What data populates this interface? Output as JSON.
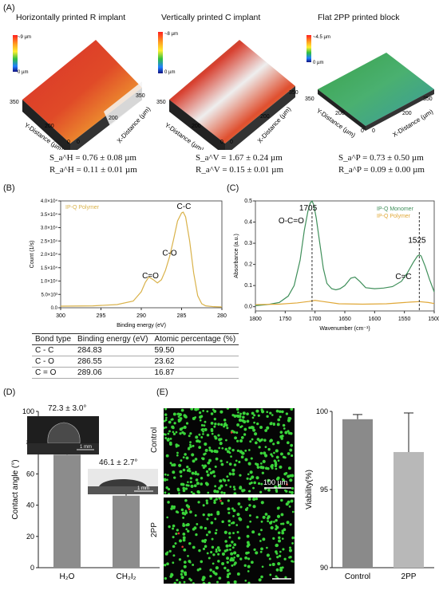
{
  "panel_labels": {
    "a": "(A)",
    "b": "(B)",
    "c": "(C)",
    "d": "(D)",
    "e": "(E)"
  },
  "panel_a": {
    "surfaces": [
      {
        "title": "Horizontally printed R implant",
        "scale_max": "~9 µm",
        "scale_min": "0 µm",
        "sa": "S_a^H = 0.76 ± 0.08 µm",
        "ra": "R_a^H = 0.11 ± 0.01 µm",
        "y_axis": "Y-Distance (µm)",
        "x_axis": "X-Distance (µm)",
        "y_ticks": [
          "350",
          "200",
          "0"
        ],
        "x_ticks": [
          "0",
          "200",
          "350"
        ]
      },
      {
        "title": "Vertically printed C implant",
        "scale_max": "~8 µm",
        "scale_min": "0 µm",
        "sa": "S_a^V = 1.67 ± 0.24 µm",
        "ra": "R_a^V = 0.15 ± 0.01 µm",
        "y_axis": "Y-Distance (µm)",
        "x_axis": "X-Distance (µm)",
        "y_ticks": [
          "350",
          "200",
          "0"
        ],
        "x_ticks": [
          "0",
          "200",
          "350"
        ]
      },
      {
        "title": "Flat 2PP printed block",
        "scale_max": "~4.5 µm",
        "scale_min": "0 µm",
        "sa": "S_a^P = 0.73 ± 0.50 µm",
        "ra": "R_a^P = 0.09 ± 0.00 µm",
        "y_axis": "Y-Distance (µm)",
        "x_axis": "X-Distance (µm)",
        "y_ticks": [
          "350",
          "200",
          "0"
        ],
        "x_ticks": [
          "0",
          "200",
          "350"
        ]
      }
    ]
  },
  "chart_data": [
    {
      "type": "line",
      "panel": "B",
      "legend": "IP-Q Polymer",
      "xlabel": "Binding energy (eV)",
      "ylabel": "Count (1/s)",
      "x_reversed": true,
      "xlim": [
        300,
        280
      ],
      "ylim": [
        0,
        40000
      ],
      "x_ticks": [
        "300",
        "295",
        "290",
        "285",
        "280"
      ],
      "y_ticks": [
        "0.0",
        "5.0×10³",
        "1.0×10⁴",
        "1.5×10⁴",
        "2.0×10⁴",
        "2.5×10⁴",
        "3.0×10⁴",
        "3.5×10⁴",
        "4.0×10⁴"
      ],
      "peak_labels": [
        {
          "text": "C=O",
          "x": 289.1,
          "y": 11000
        },
        {
          "text": "C-O",
          "x": 286.6,
          "y": 19500
        },
        {
          "text": "C-C",
          "x": 284.8,
          "y": 37000
        }
      ],
      "x": [
        300,
        296,
        293,
        291,
        290,
        289.5,
        289.06,
        288.5,
        288,
        287.5,
        287,
        286.5,
        286,
        285.5,
        285,
        284.8,
        284.5,
        284,
        283.5,
        283,
        282.5,
        282,
        281,
        280
      ],
      "values": [
        600,
        700,
        1200,
        2500,
        6000,
        9500,
        11500,
        10500,
        9300,
        10500,
        14000,
        19000,
        25500,
        32500,
        35500,
        35800,
        34000,
        25000,
        13000,
        4500,
        1500,
        700,
        400,
        300
      ],
      "color": "#d9b24a"
    },
    {
      "type": "line",
      "panel": "C",
      "xlabel": "Wavenumber (cm⁻¹)",
      "ylabel": "Absorbance (a.u.)",
      "x_reversed": true,
      "xlim": [
        1800,
        1500
      ],
      "ylim": [
        -0.02,
        0.5
      ],
      "x_ticks": [
        "1800",
        "1750",
        "1700",
        "1650",
        "1600",
        "1550",
        "1500"
      ],
      "y_ticks": [
        "0.0",
        "0.1",
        "0.2",
        "0.3",
        "0.4",
        "0.5"
      ],
      "annotations": [
        {
          "text": "1705",
          "x": 1705
        },
        {
          "text": "O-C=O",
          "x": 1705
        },
        {
          "text": "1525",
          "x": 1525
        },
        {
          "text": "C=C",
          "x": 1525
        }
      ],
      "series": [
        {
          "name": "IP-Q Monomer",
          "color": "#3f8f5a",
          "x": [
            1800,
            1780,
            1760,
            1745,
            1735,
            1725,
            1718,
            1712,
            1708,
            1705,
            1702,
            1698,
            1692,
            1686,
            1680,
            1672,
            1665,
            1658,
            1650,
            1640,
            1633,
            1625,
            1615,
            1600,
            1585,
            1570,
            1555,
            1545,
            1535,
            1528,
            1525,
            1522,
            1515,
            1508,
            1500
          ],
          "values": [
            0.005,
            0.01,
            0.02,
            0.05,
            0.1,
            0.22,
            0.36,
            0.45,
            0.49,
            0.5,
            0.48,
            0.42,
            0.3,
            0.18,
            0.11,
            0.085,
            0.08,
            0.085,
            0.1,
            0.135,
            0.14,
            0.12,
            0.09,
            0.085,
            0.088,
            0.095,
            0.12,
            0.16,
            0.21,
            0.24,
            0.245,
            0.24,
            0.19,
            0.13,
            0.07
          ]
        },
        {
          "name": "IP-Q Polymer",
          "color": "#e0a838",
          "x": [
            1800,
            1760,
            1730,
            1710,
            1700,
            1690,
            1660,
            1620,
            1580,
            1540,
            1525,
            1510,
            1500
          ],
          "values": [
            0.01,
            0.012,
            0.018,
            0.025,
            0.03,
            0.026,
            0.014,
            0.012,
            0.014,
            0.022,
            0.024,
            0.02,
            0.015
          ]
        }
      ]
    },
    {
      "type": "bar",
      "panel": "D",
      "ylabel": "Contact angle (°)",
      "categories": [
        "H₂O",
        "CH₂I₂"
      ],
      "values": [
        72.3,
        46.1
      ],
      "errors": [
        3.0,
        2.7
      ],
      "ylim": [
        0,
        100
      ],
      "y_ticks": [
        "0",
        "20",
        "40",
        "60",
        "80",
        "100"
      ],
      "color": "#8c8c8c"
    },
    {
      "type": "bar",
      "panel": "E",
      "ylabel": "Viability(%)",
      "categories": [
        "Control",
        "2PP"
      ],
      "values": [
        99.5,
        97.4
      ],
      "errors": [
        0.3,
        2.5
      ],
      "ylim": [
        90,
        100
      ],
      "y_ticks": [
        "90",
        "95",
        "100"
      ],
      "colors": [
        "#8a8a8a",
        "#b8b8b8"
      ]
    }
  ],
  "panel_b_table": {
    "headers": [
      "Bond type",
      "Binding energy (eV)",
      "Atomic percentage (%)"
    ],
    "rows": [
      [
        "C - C",
        "284.83",
        "59.50"
      ],
      [
        "C - O",
        "286.55",
        "23.62"
      ],
      [
        "C = O",
        "289.06",
        "16.87"
      ]
    ]
  },
  "panel_d": {
    "h2o_angle": "72.3 ± 3.0°",
    "ch2i2_angle": "46.1 ± 2.7°",
    "scale_bar": "1 mm"
  },
  "panel_e": {
    "image_labels": [
      "Control",
      "2PP"
    ],
    "scale_bar": "100 µm"
  }
}
